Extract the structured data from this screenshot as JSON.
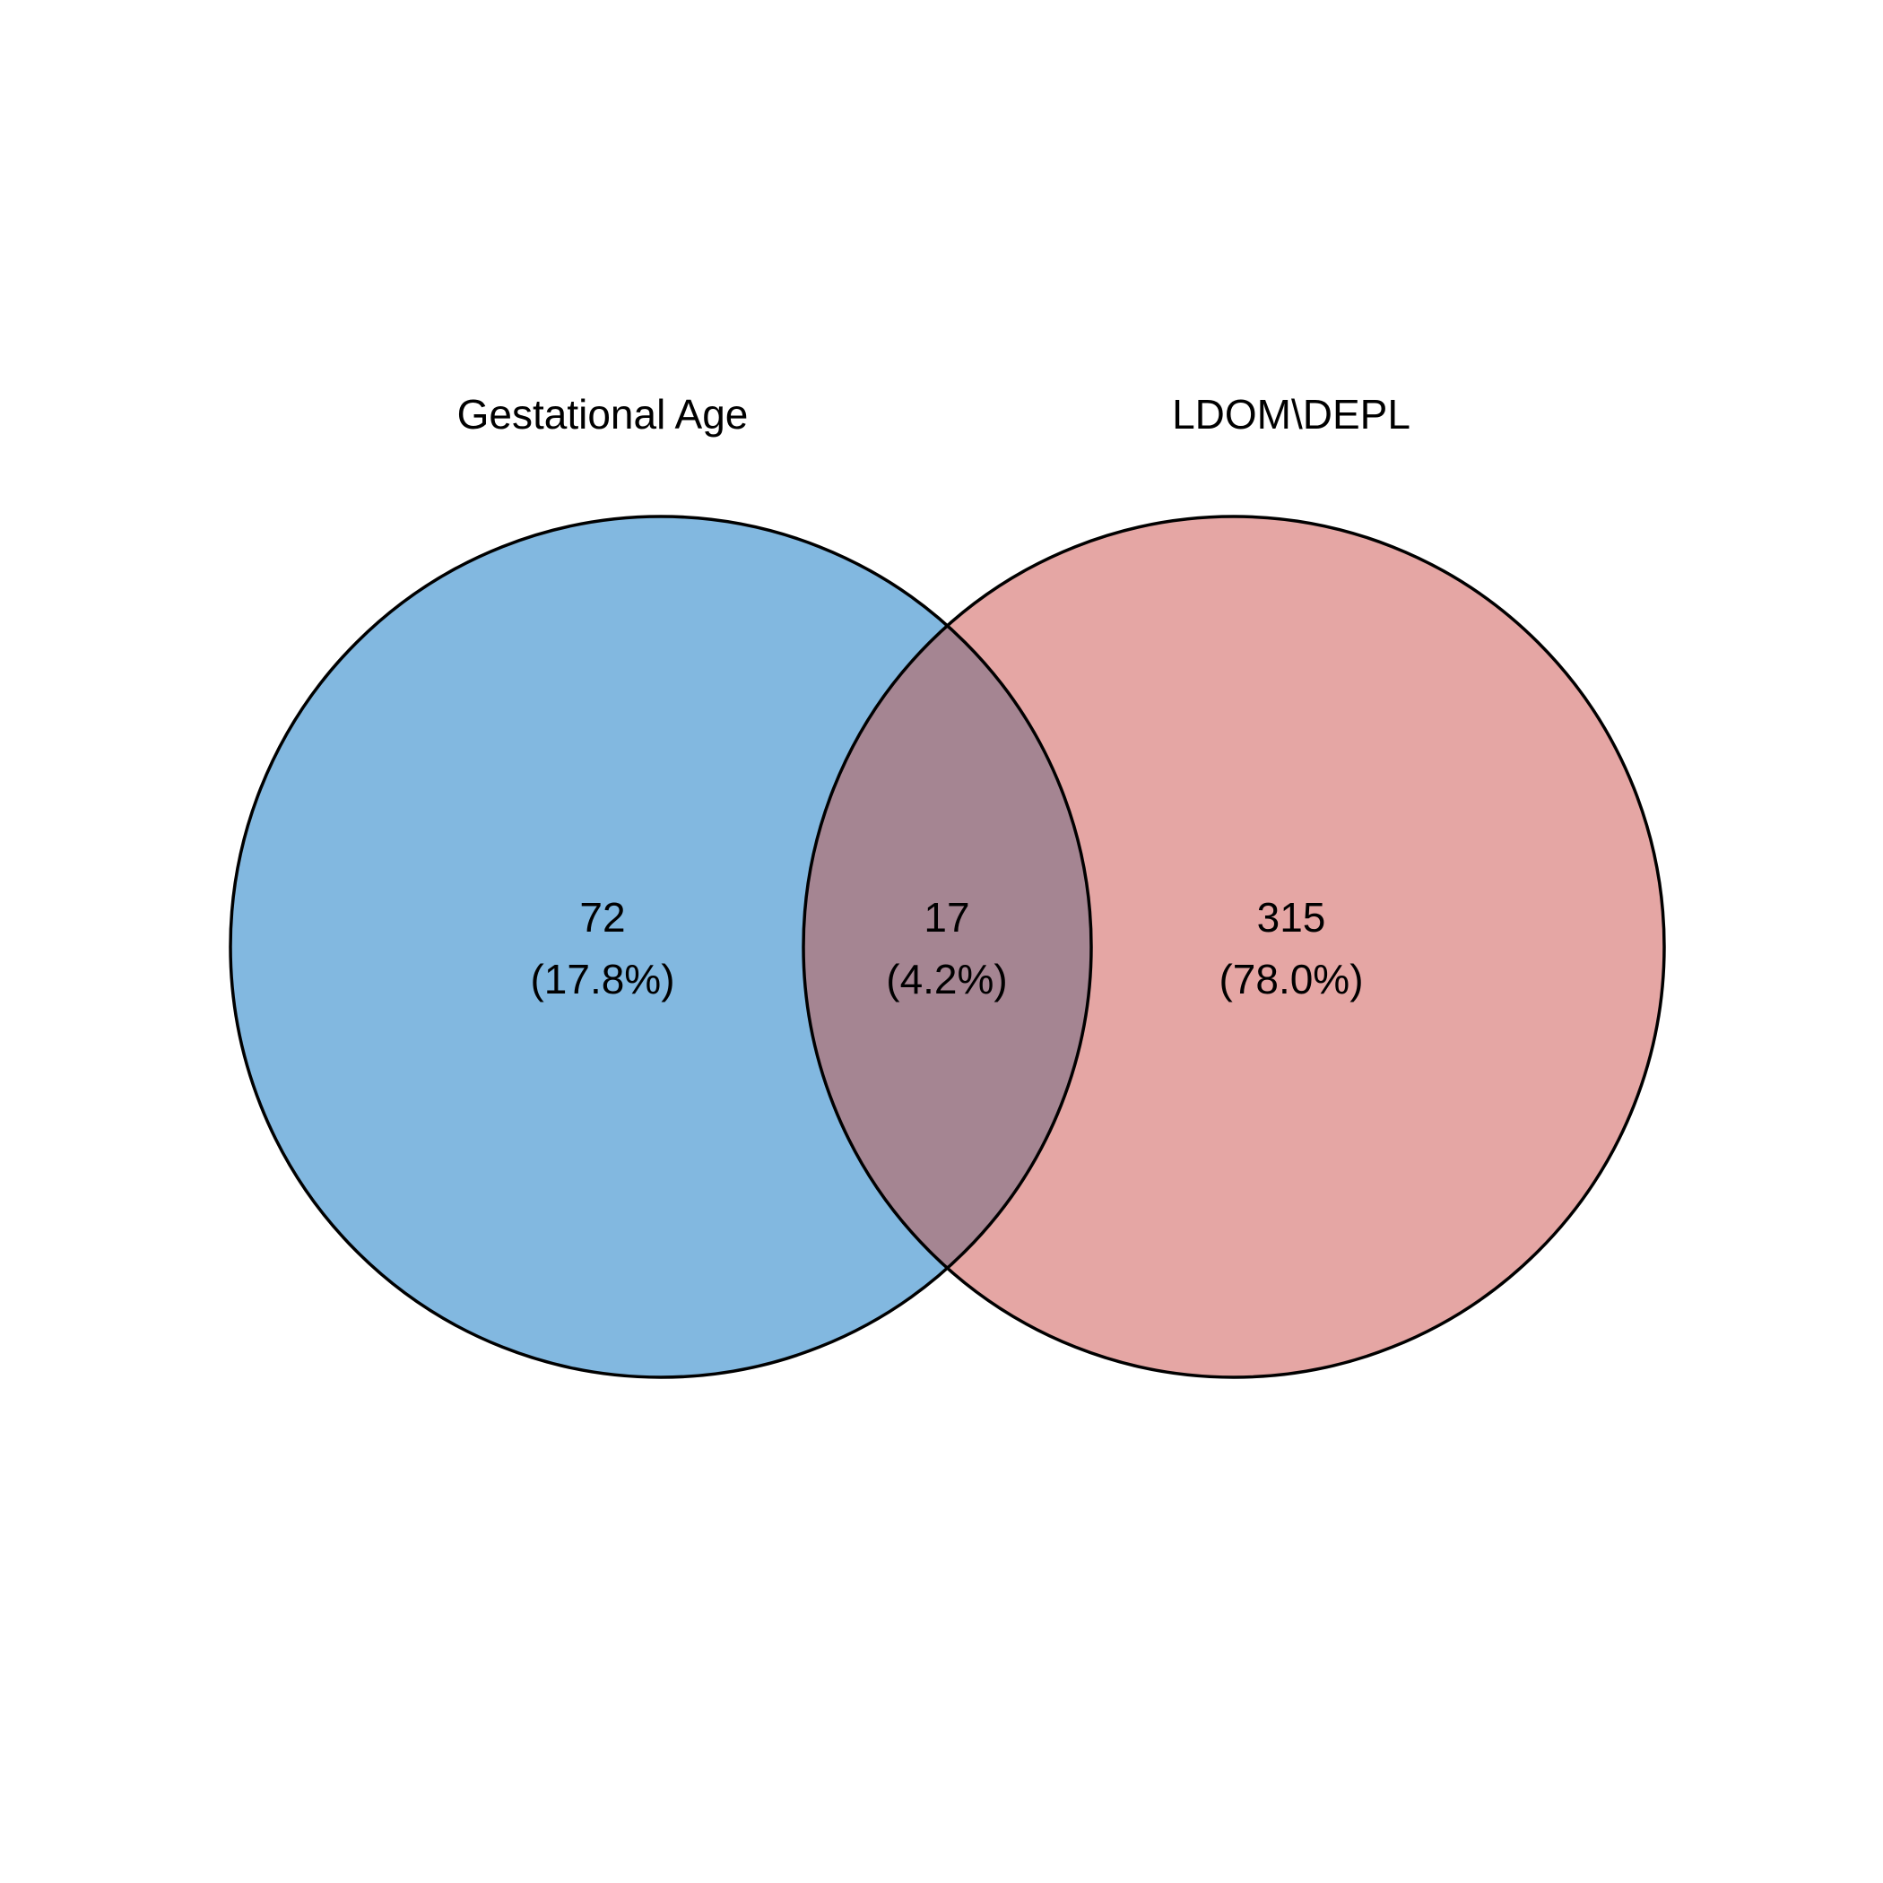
{
  "sets": [
    {
      "name": "Gestational Age",
      "color": "#82b8e0"
    },
    {
      "name": "LDOM\\DEPL",
      "color": "#e5a6a4"
    }
  ],
  "overlap_color": "#a58592",
  "outline_color": "#000000",
  "regions": {
    "left_only": {
      "count": "72",
      "percent": "(17.8%)"
    },
    "both": {
      "count": "17",
      "percent": "(4.2%)"
    },
    "right_only": {
      "count": "315",
      "percent": "(78.0%)"
    }
  }
}
